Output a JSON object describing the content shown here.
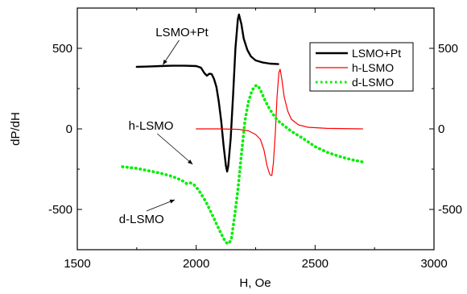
{
  "chart_data": {
    "type": "line",
    "title": "",
    "xlabel": "H, Oe",
    "ylabel": "dP/dH",
    "xlim": [
      1500,
      3000
    ],
    "ylim": [
      -750,
      750
    ],
    "x_ticks": [
      1500,
      2000,
      2500,
      3000
    ],
    "y_ticks": [
      -500,
      0,
      500
    ],
    "y_ticks_right": [
      -500,
      0,
      500
    ],
    "grid": false,
    "legend_position": "top-right",
    "series": [
      {
        "name": "LSMO+Pt",
        "color": "#000000",
        "style": "solid",
        "points": [
          [
            1750,
            385
          ],
          [
            1800,
            387
          ],
          [
            1850,
            390
          ],
          [
            1900,
            392
          ],
          [
            1950,
            392
          ],
          [
            2000,
            390
          ],
          [
            2020,
            380
          ],
          [
            2035,
            345
          ],
          [
            2045,
            330
          ],
          [
            2055,
            342
          ],
          [
            2065,
            340
          ],
          [
            2075,
            310
          ],
          [
            2085,
            260
          ],
          [
            2095,
            170
          ],
          [
            2105,
            50
          ],
          [
            2115,
            -100
          ],
          [
            2125,
            -230
          ],
          [
            2130,
            -265
          ],
          [
            2135,
            -230
          ],
          [
            2145,
            -60
          ],
          [
            2155,
            200
          ],
          [
            2165,
            500
          ],
          [
            2175,
            680
          ],
          [
            2180,
            710
          ],
          [
            2190,
            650
          ],
          [
            2200,
            560
          ],
          [
            2215,
            490
          ],
          [
            2230,
            450
          ],
          [
            2250,
            425
          ],
          [
            2280,
            412
          ],
          [
            2310,
            405
          ],
          [
            2345,
            402
          ]
        ]
      },
      {
        "name": "h-LSMO",
        "color": "#ff0000",
        "style": "solid",
        "points": [
          [
            2000,
            0
          ],
          [
            2100,
            0
          ],
          [
            2180,
            -3
          ],
          [
            2220,
            -12
          ],
          [
            2250,
            -35
          ],
          [
            2270,
            -65
          ],
          [
            2285,
            -130
          ],
          [
            2298,
            -230
          ],
          [
            2310,
            -285
          ],
          [
            2318,
            -290
          ],
          [
            2325,
            -210
          ],
          [
            2333,
            -20
          ],
          [
            2340,
            200
          ],
          [
            2348,
            350
          ],
          [
            2353,
            370
          ],
          [
            2360,
            310
          ],
          [
            2370,
            200
          ],
          [
            2385,
            110
          ],
          [
            2400,
            60
          ],
          [
            2430,
            25
          ],
          [
            2470,
            10
          ],
          [
            2550,
            3
          ],
          [
            2700,
            0
          ]
        ]
      },
      {
        "name": "d-LSMO",
        "color": "#00ee00",
        "style": "dotted",
        "points": [
          [
            1690,
            -235
          ],
          [
            1750,
            -245
          ],
          [
            1800,
            -260
          ],
          [
            1850,
            -275
          ],
          [
            1900,
            -295
          ],
          [
            1940,
            -320
          ],
          [
            1960,
            -340
          ],
          [
            1975,
            -335
          ],
          [
            1990,
            -345
          ],
          [
            2010,
            -380
          ],
          [
            2040,
            -450
          ],
          [
            2070,
            -540
          ],
          [
            2095,
            -620
          ],
          [
            2115,
            -680
          ],
          [
            2128,
            -708
          ],
          [
            2138,
            -712
          ],
          [
            2148,
            -680
          ],
          [
            2160,
            -560
          ],
          [
            2175,
            -380
          ],
          [
            2190,
            -160
          ],
          [
            2205,
            50
          ],
          [
            2220,
            170
          ],
          [
            2235,
            240
          ],
          [
            2250,
            268
          ],
          [
            2260,
            268
          ],
          [
            2272,
            235
          ],
          [
            2290,
            175
          ],
          [
            2310,
            120
          ],
          [
            2340,
            55
          ],
          [
            2370,
            20
          ],
          [
            2400,
            -15
          ],
          [
            2450,
            -60
          ],
          [
            2500,
            -110
          ],
          [
            2550,
            -145
          ],
          [
            2600,
            -170
          ],
          [
            2650,
            -190
          ],
          [
            2700,
            -205
          ]
        ]
      }
    ],
    "annotations": [
      {
        "text": "LSMO+Pt",
        "at": [
          1940,
          575
        ],
        "arrow_to": [
          1860,
          398
        ]
      },
      {
        "text": "h-LSMO",
        "at": [
          1810,
          -5
        ],
        "arrow_to": [
          1985,
          -220
        ]
      },
      {
        "text": "d-LSMO",
        "at": [
          1770,
          -585
        ],
        "arrow_to": [
          1910,
          -440
        ]
      }
    ]
  }
}
